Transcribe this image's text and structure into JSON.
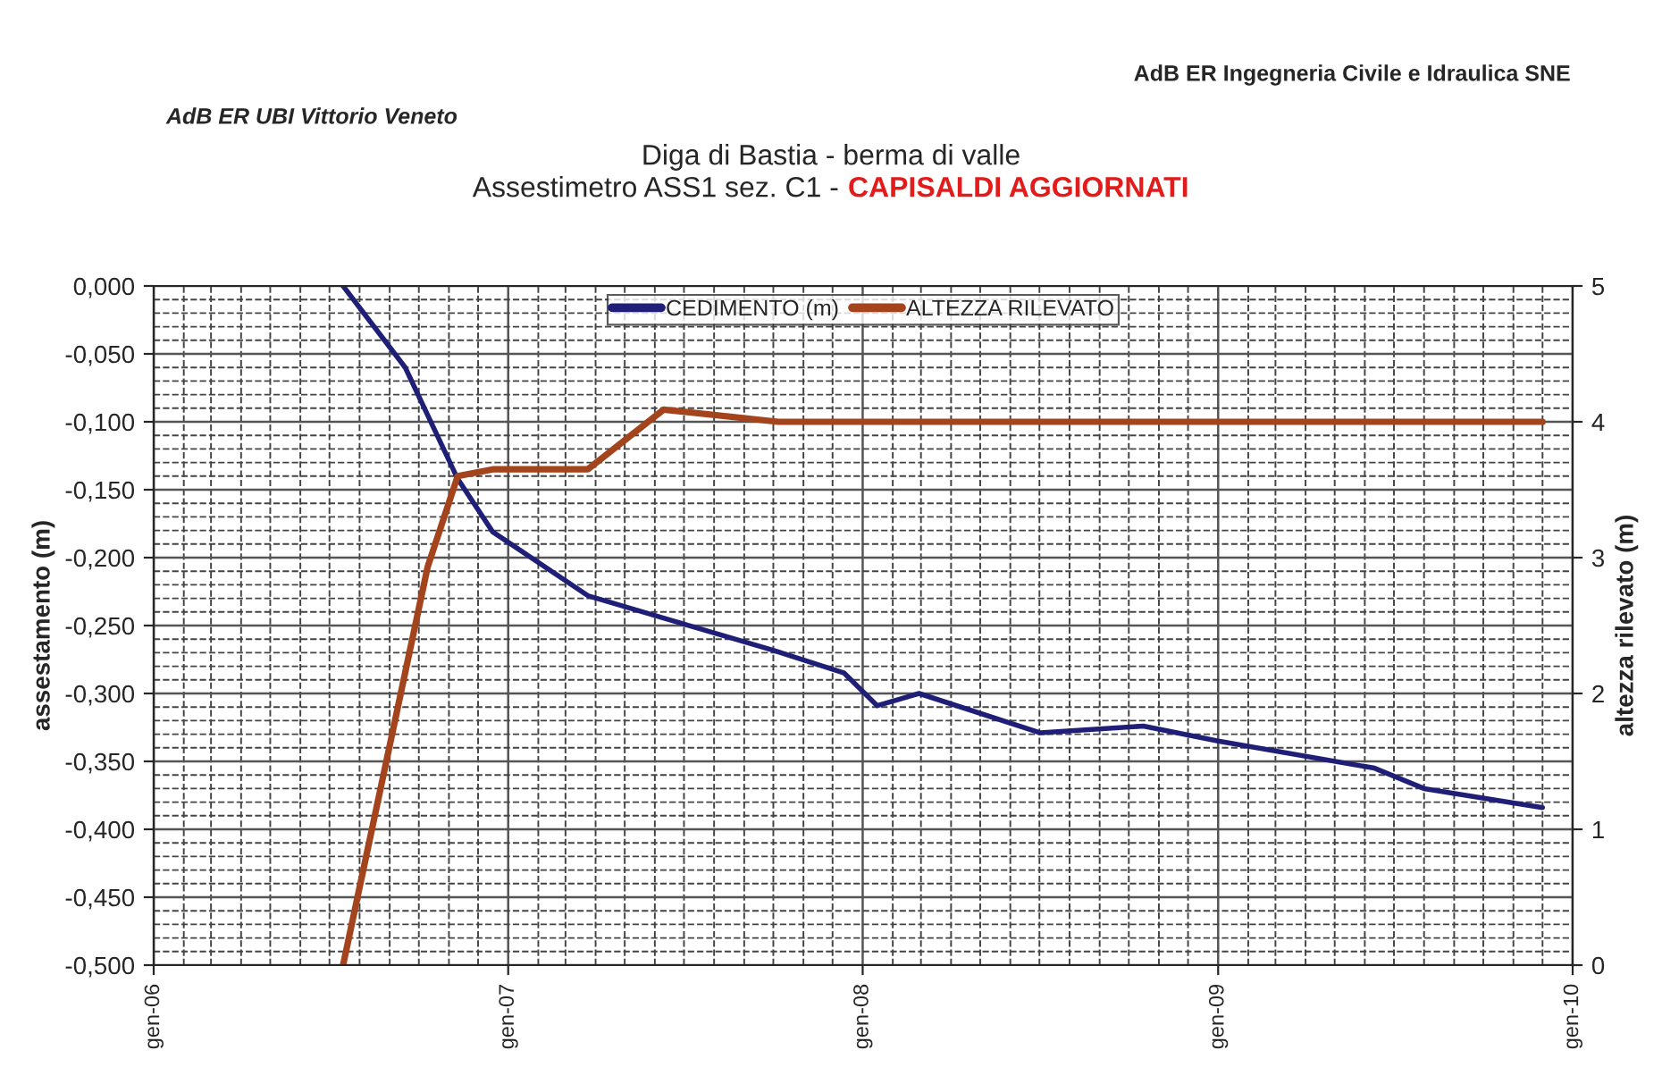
{
  "chart_data": {
    "type": "line",
    "title": "Diga di Bastia - berma di valle",
    "subtitle": "Assestimetro ASS1 sez. C1 - CAPISALDI AGGIORNATI",
    "annotations": [
      "AdB ER Ingegneria Civile e Idraulica SNE",
      "AdB ER UBI Vittorio Veneto"
    ],
    "ylabel": "assestamento (m)",
    "y2label": "altezza rilevato (m)",
    "xlim": [
      "2006-01-01",
      "2010-01-01"
    ],
    "xticks": [
      {
        "value": "2006-01-01",
        "label": "gen-06"
      },
      {
        "value": "2007-01-01",
        "label": "gen-07"
      },
      {
        "value": "2008-01-01",
        "label": "gen-08"
      },
      {
        "value": "2009-01-01",
        "label": "gen-09"
      },
      {
        "value": "2010-01-01",
        "label": "gen-10"
      }
    ],
    "ylim": [
      -0.5,
      0
    ],
    "yticks": [
      {
        "value": -0.5,
        "label": "-0,500"
      },
      {
        "value": -0.45,
        "label": "-0,450"
      },
      {
        "value": -0.4,
        "label": "-0,400"
      },
      {
        "value": -0.35,
        "label": "-0,350"
      },
      {
        "value": -0.3,
        "label": "-0,300"
      },
      {
        "value": -0.25,
        "label": "-0,250"
      },
      {
        "value": -0.2,
        "label": "-0,200"
      },
      {
        "value": -0.15,
        "label": "-0,150"
      },
      {
        "value": -0.1,
        "label": "-0,100"
      },
      {
        "value": -0.05,
        "label": "-0,050"
      },
      {
        "value": 0,
        "label": "0,000"
      }
    ],
    "y2lim": [
      0,
      5
    ],
    "y2ticks": [
      0,
      1,
      2,
      3,
      4,
      5
    ],
    "grid": true,
    "legend": "top",
    "marker": "none",
    "line_style": "solid",
    "series": [
      {
        "name": "CEDIMENTO (m)",
        "color": "#1f1f78",
        "x": [
          "2006-07-15",
          "2006-09-17",
          "2006-11-10",
          "2006-12-16",
          "2007-03-24",
          "2007-06-17",
          "2007-09-30",
          "2007-12-13",
          "2008-01-16",
          "2008-02-28",
          "2008-07-02",
          "2008-10-16",
          "2009-01-01",
          "2009-06-11",
          "2009-08-01",
          "2009-12-01"
        ],
        "values": [
          0.0,
          -0.06,
          -0.142,
          -0.181,
          -0.228,
          -0.246,
          -0.268,
          -0.285,
          -0.309,
          -0.3,
          -0.329,
          -0.324,
          -0.335,
          -0.355,
          -0.37,
          -0.384
        ]
      },
      {
        "name": "ALTEZZA RILEVATO",
        "color": "#a3441c",
        "axis": "y2",
        "x": [
          "2006-07-15",
          "2006-10-10",
          "2006-11-10",
          "2006-12-16",
          "2007-03-24",
          "2007-06-10",
          "2007-10-06",
          "2009-12-01"
        ],
        "values": [
          0.0,
          2.93,
          3.6,
          3.65,
          3.65,
          4.09,
          4.0,
          4.0
        ]
      }
    ]
  }
}
